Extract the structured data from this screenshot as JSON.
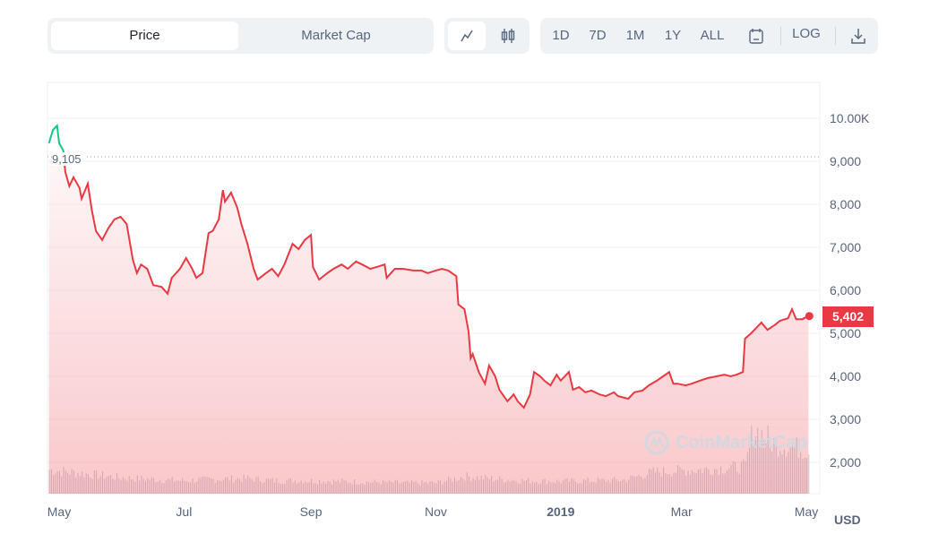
{
  "toolbar": {
    "tabs": [
      {
        "label": "Price",
        "active": true
      },
      {
        "label": "Market Cap",
        "active": false
      }
    ],
    "chart_types": [
      {
        "icon": "line-chart-icon",
        "active": true
      },
      {
        "icon": "candlestick-icon",
        "active": false
      }
    ],
    "ranges": [
      "1D",
      "7D",
      "1M",
      "1Y",
      "ALL"
    ],
    "calendar_icon": "calendar-icon",
    "log_label": "LOG",
    "download_icon": "download-icon"
  },
  "watermark": "CoinMarketCap",
  "chart_data": {
    "type": "area",
    "currency_label": "USD",
    "y_ticks": [
      "10.00K",
      "9,000",
      "8,000",
      "7,000",
      "6,000",
      "5,000",
      "4,000",
      "3,000",
      "2,000"
    ],
    "y_tick_values": [
      10000,
      9000,
      8000,
      7000,
      6000,
      5000,
      4000,
      3000,
      2000
    ],
    "x_ticks": [
      {
        "label": "May",
        "date": "2018-05-01",
        "bold": false
      },
      {
        "label": "Jul",
        "date": "2018-07-01",
        "bold": false
      },
      {
        "label": "Sep",
        "date": "2018-09-01",
        "bold": false
      },
      {
        "label": "Nov",
        "date": "2018-11-01",
        "bold": false
      },
      {
        "label": "2019",
        "date": "2019-01-01",
        "bold": true
      },
      {
        "label": "Mar",
        "date": "2019-03-01",
        "bold": false
      },
      {
        "label": "May",
        "date": "2019-05-01",
        "bold": false
      }
    ],
    "reference_line": {
      "value": 9105,
      "label": "9,105"
    },
    "current_price": {
      "value": 5402,
      "label": "5,402"
    },
    "colors": {
      "up": "#16c784",
      "down": "#ea3943",
      "volume": "#c8ccd6",
      "grid": "#eff2f5"
    },
    "series": [
      [
        "2018-04-26",
        9420
      ],
      [
        "2018-04-28",
        9730
      ],
      [
        "2018-04-30",
        9830
      ],
      [
        "2018-05-01",
        9420
      ],
      [
        "2018-05-03",
        9250
      ],
      [
        "2018-05-04",
        8750
      ],
      [
        "2018-05-06",
        8420
      ],
      [
        "2018-05-08",
        8630
      ],
      [
        "2018-05-11",
        8380
      ],
      [
        "2018-05-12",
        8130
      ],
      [
        "2018-05-15",
        8480
      ],
      [
        "2018-05-17",
        7850
      ],
      [
        "2018-05-19",
        7380
      ],
      [
        "2018-05-22",
        7170
      ],
      [
        "2018-05-25",
        7440
      ],
      [
        "2018-05-28",
        7650
      ],
      [
        "2018-05-31",
        7710
      ],
      [
        "2018-06-03",
        7540
      ],
      [
        "2018-06-06",
        6710
      ],
      [
        "2018-06-08",
        6400
      ],
      [
        "2018-06-10",
        6600
      ],
      [
        "2018-06-13",
        6500
      ],
      [
        "2018-06-16",
        6120
      ],
      [
        "2018-06-20",
        6080
      ],
      [
        "2018-06-23",
        5920
      ],
      [
        "2018-06-25",
        6290
      ],
      [
        "2018-06-29",
        6500
      ],
      [
        "2018-07-02",
        6750
      ],
      [
        "2018-07-05",
        6500
      ],
      [
        "2018-07-07",
        6290
      ],
      [
        "2018-07-10",
        6400
      ],
      [
        "2018-07-13",
        7330
      ],
      [
        "2018-07-15",
        7380
      ],
      [
        "2018-07-18",
        7650
      ],
      [
        "2018-07-20",
        8330
      ],
      [
        "2018-07-21",
        8060
      ],
      [
        "2018-07-24",
        8270
      ],
      [
        "2018-07-27",
        7920
      ],
      [
        "2018-07-29",
        7540
      ],
      [
        "2018-08-01",
        7080
      ],
      [
        "2018-08-04",
        6500
      ],
      [
        "2018-08-06",
        6250
      ],
      [
        "2018-08-10",
        6400
      ],
      [
        "2018-08-13",
        6500
      ],
      [
        "2018-08-16",
        6330
      ],
      [
        "2018-08-19",
        6600
      ],
      [
        "2018-08-23",
        7080
      ],
      [
        "2018-08-26",
        6960
      ],
      [
        "2018-08-29",
        7170
      ],
      [
        "2018-09-01",
        7290
      ],
      [
        "2018-09-02",
        6540
      ],
      [
        "2018-09-05",
        6250
      ],
      [
        "2018-09-09",
        6400
      ],
      [
        "2018-09-12",
        6500
      ],
      [
        "2018-09-16",
        6600
      ],
      [
        "2018-09-19",
        6500
      ],
      [
        "2018-09-23",
        6670
      ],
      [
        "2018-09-26",
        6600
      ],
      [
        "2018-09-30",
        6500
      ],
      [
        "2018-10-03",
        6540
      ],
      [
        "2018-10-07",
        6600
      ],
      [
        "2018-10-08",
        6290
      ],
      [
        "2018-10-12",
        6500
      ],
      [
        "2018-10-16",
        6500
      ],
      [
        "2018-10-21",
        6460
      ],
      [
        "2018-10-25",
        6460
      ],
      [
        "2018-10-28",
        6400
      ],
      [
        "2018-11-01",
        6460
      ],
      [
        "2018-11-04",
        6500
      ],
      [
        "2018-11-07",
        6460
      ],
      [
        "2018-11-11",
        6330
      ],
      [
        "2018-11-12",
        5670
      ],
      [
        "2018-11-15",
        5560
      ],
      [
        "2018-11-17",
        5040
      ],
      [
        "2018-11-18",
        4420
      ],
      [
        "2018-11-19",
        4520
      ],
      [
        "2018-11-22",
        4100
      ],
      [
        "2018-11-25",
        3830
      ],
      [
        "2018-11-27",
        4250
      ],
      [
        "2018-11-30",
        4000
      ],
      [
        "2018-12-02",
        3690
      ],
      [
        "2018-12-06",
        3420
      ],
      [
        "2018-12-09",
        3580
      ],
      [
        "2018-12-11",
        3420
      ],
      [
        "2018-12-14",
        3270
      ],
      [
        "2018-12-17",
        3580
      ],
      [
        "2018-12-19",
        4100
      ],
      [
        "2018-12-22",
        4000
      ],
      [
        "2018-12-24",
        3900
      ],
      [
        "2018-12-27",
        3790
      ],
      [
        "2018-12-30",
        4040
      ],
      [
        "2019-01-01",
        3900
      ],
      [
        "2019-01-05",
        4100
      ],
      [
        "2019-01-07",
        3690
      ],
      [
        "2019-01-10",
        3750
      ],
      [
        "2019-01-13",
        3630
      ],
      [
        "2019-01-16",
        3670
      ],
      [
        "2019-01-20",
        3580
      ],
      [
        "2019-01-23",
        3540
      ],
      [
        "2019-01-27",
        3630
      ],
      [
        "2019-01-29",
        3540
      ],
      [
        "2019-02-03",
        3480
      ],
      [
        "2019-02-06",
        3630
      ],
      [
        "2019-02-10",
        3670
      ],
      [
        "2019-02-13",
        3790
      ],
      [
        "2019-02-17",
        3900
      ],
      [
        "2019-02-20",
        4000
      ],
      [
        "2019-02-23",
        4100
      ],
      [
        "2019-02-25",
        3830
      ],
      [
        "2019-02-27",
        3830
      ],
      [
        "2019-03-03",
        3790
      ],
      [
        "2019-03-06",
        3830
      ],
      [
        "2019-03-10",
        3900
      ],
      [
        "2019-03-14",
        3960
      ],
      [
        "2019-03-18",
        4000
      ],
      [
        "2019-03-22",
        4040
      ],
      [
        "2019-03-25",
        4000
      ],
      [
        "2019-03-28",
        4040
      ],
      [
        "2019-03-31",
        4100
      ],
      [
        "2019-04-01",
        4875
      ],
      [
        "2019-04-04",
        5000
      ],
      [
        "2019-04-07",
        5150
      ],
      [
        "2019-04-09",
        5250
      ],
      [
        "2019-04-12",
        5080
      ],
      [
        "2019-04-16",
        5210
      ],
      [
        "2019-04-18",
        5290
      ],
      [
        "2019-04-22",
        5350
      ],
      [
        "2019-04-24",
        5560
      ],
      [
        "2019-04-26",
        5330
      ],
      [
        "2019-04-29",
        5330
      ],
      [
        "2019-05-02",
        5402
      ]
    ],
    "volume_relative": [
      [
        "2018-04-26",
        33
      ],
      [
        "2018-05-15",
        27
      ],
      [
        "2018-06-01",
        22
      ],
      [
        "2018-06-15",
        20
      ],
      [
        "2018-07-01",
        18
      ],
      [
        "2018-07-15",
        20
      ],
      [
        "2018-08-01",
        21
      ],
      [
        "2018-08-15",
        18
      ],
      [
        "2018-09-01",
        18
      ],
      [
        "2018-09-15",
        17
      ],
      [
        "2018-10-01",
        16
      ],
      [
        "2018-10-15",
        15
      ],
      [
        "2018-11-01",
        15
      ],
      [
        "2018-11-15",
        24
      ],
      [
        "2018-12-01",
        20
      ],
      [
        "2018-12-15",
        18
      ],
      [
        "2019-01-01",
        17
      ],
      [
        "2019-01-15",
        18
      ],
      [
        "2019-02-01",
        19
      ],
      [
        "2019-02-15",
        30
      ],
      [
        "2019-03-01",
        32
      ],
      [
        "2019-03-15",
        34
      ],
      [
        "2019-04-01",
        38
      ],
      [
        "2019-04-05",
        90
      ],
      [
        "2019-04-15",
        70
      ],
      [
        "2019-05-02",
        60
      ]
    ]
  }
}
